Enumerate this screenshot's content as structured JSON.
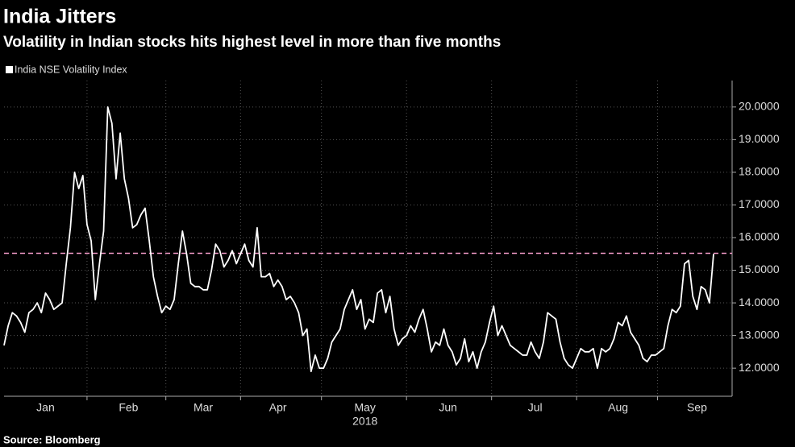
{
  "chart_data": {
    "type": "line",
    "title": "India Jitters",
    "subtitle": "Volatility in Indian stocks hits highest level in more than five months",
    "source": "Source: Bloomberg",
    "year_label": "2018",
    "categories": [
      null,
      null,
      null,
      null,
      null,
      null,
      null,
      null,
      null,
      null,
      "Jan",
      null,
      null,
      null,
      null,
      null,
      null,
      null,
      null,
      null,
      null,
      null,
      null,
      null,
      null,
      null,
      null,
      null,
      null,
      null,
      "Feb",
      null,
      null,
      null,
      null,
      null,
      null,
      null,
      null,
      null,
      null,
      null,
      null,
      null,
      null,
      null,
      null,
      null,
      "Mar",
      null,
      null,
      null,
      null,
      null,
      null,
      null,
      null,
      null,
      null,
      null,
      null,
      null,
      null,
      null,
      null,
      null,
      "Apr",
      null,
      null,
      null,
      null,
      null,
      null,
      null,
      null,
      null,
      null,
      null,
      null,
      null,
      null,
      null,
      null,
      null,
      null,
      null,
      null,
      "May",
      null,
      null,
      null,
      null,
      null,
      null,
      null,
      null,
      null,
      null,
      null,
      null,
      null,
      null,
      null,
      null,
      null,
      null,
      null,
      "Jun",
      null,
      null,
      null,
      null,
      null,
      null,
      null,
      null,
      null,
      null,
      null,
      null,
      null,
      null,
      null,
      null,
      null,
      null,
      null,
      null,
      "Jul",
      null,
      null,
      null,
      null,
      null,
      null,
      null,
      null,
      null,
      null,
      null,
      null,
      null,
      null,
      null,
      null,
      null,
      null,
      null,
      "Aug",
      null,
      null,
      null,
      null,
      null,
      null,
      null,
      null,
      null,
      null,
      null,
      null,
      null,
      null,
      null,
      null,
      null,
      null,
      "Sep",
      null,
      null,
      null,
      null
    ],
    "series": [
      {
        "name": "India NSE Volatility Index",
        "color": "#ffffff",
        "values": [
          12.7,
          13.3,
          13.7,
          13.6,
          13.4,
          13.1,
          13.7,
          13.8,
          14.0,
          13.7,
          14.3,
          14.1,
          13.8,
          13.9,
          14.0,
          15.2,
          16.3,
          18.0,
          17.5,
          17.9,
          16.4,
          15.9,
          14.1,
          15.2,
          16.2,
          20.0,
          19.5,
          17.8,
          19.2,
          17.8,
          17.2,
          16.3,
          16.4,
          16.7,
          16.9,
          15.9,
          14.8,
          14.2,
          13.7,
          13.9,
          13.8,
          14.1,
          15.2,
          16.2,
          15.5,
          14.6,
          14.5,
          14.5,
          14.4,
          14.4,
          15.0,
          15.8,
          15.6,
          15.1,
          15.3,
          15.6,
          15.2,
          15.5,
          15.8,
          15.3,
          15.1,
          16.3,
          14.8,
          14.8,
          14.9,
          14.5,
          14.7,
          14.5,
          14.1,
          14.2,
          14.0,
          13.7,
          13.0,
          13.2,
          11.9,
          12.4,
          12.0,
          12.0,
          12.3,
          12.8,
          13.0,
          13.2,
          13.8,
          14.1,
          14.4,
          13.8,
          14.1,
          13.2,
          13.5,
          13.4,
          14.3,
          14.4,
          13.7,
          14.2,
          13.2,
          12.7,
          12.9,
          13.0,
          13.3,
          13.1,
          13.5,
          13.8,
          13.2,
          12.5,
          12.8,
          12.7,
          13.2,
          12.7,
          12.5,
          12.1,
          12.3,
          12.9,
          12.2,
          12.5,
          12.0,
          12.5,
          12.8,
          13.4,
          13.9,
          13.0,
          13.3,
          13.0,
          12.7,
          12.6,
          12.5,
          12.4,
          12.4,
          12.8,
          12.5,
          12.3,
          12.8,
          13.7,
          13.6,
          13.5,
          12.8,
          12.3,
          12.1,
          12.0,
          12.3,
          12.6,
          12.5,
          12.5,
          12.6,
          12.0,
          12.6,
          12.5,
          12.6,
          12.9,
          13.4,
          13.3,
          13.6,
          13.1,
          12.9,
          12.7,
          12.3,
          12.2,
          12.4,
          12.4,
          12.5,
          12.6,
          13.3,
          13.8,
          13.7,
          13.9,
          15.2,
          15.3,
          14.2,
          13.8,
          14.5,
          14.4,
          14.0,
          15.5
        ]
      }
    ],
    "reference_line": {
      "value": 15.52,
      "color": "#f29ac8"
    },
    "ylim": [
      11.14,
      20.81
    ],
    "yticks": [
      {
        "value": 12,
        "label": "12.0000"
      },
      {
        "value": 13,
        "label": "13.0000"
      },
      {
        "value": 14,
        "label": "14.0000"
      },
      {
        "value": 15,
        "label": "15.0000"
      },
      {
        "value": 16,
        "label": "16.0000"
      },
      {
        "value": 17,
        "label": "17.0000"
      },
      {
        "value": 18,
        "label": "18.0000"
      },
      {
        "value": 19,
        "label": "19.0000"
      },
      {
        "value": 20,
        "label": "20.0000"
      }
    ],
    "grid": true
  }
}
